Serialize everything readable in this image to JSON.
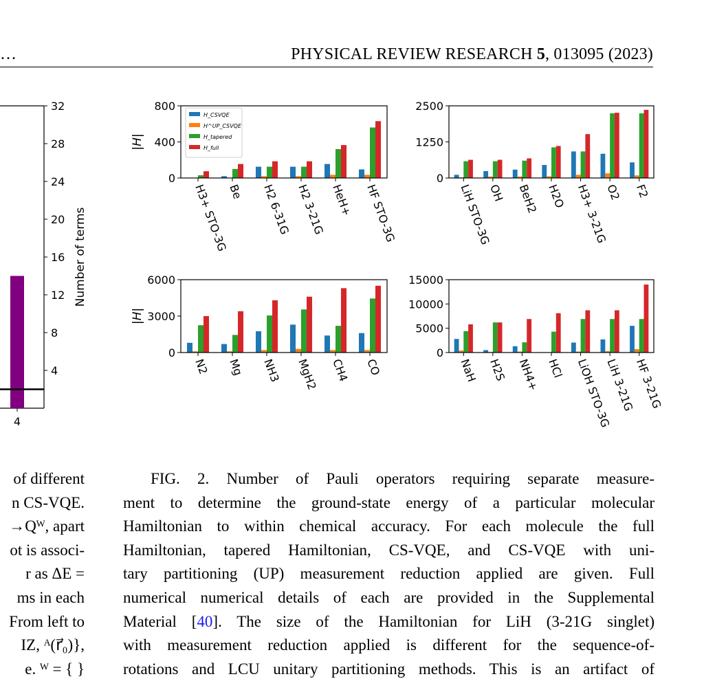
{
  "header": {
    "left_fragment": "…",
    "journal": "PHYSICAL REVIEW RESEARCH",
    "volume": "5",
    "article": ", 013095 (2023)"
  },
  "left_panel": {
    "ylabel": "Number of terms",
    "yticks": [
      "32",
      "28",
      "24",
      "20",
      "16",
      "12",
      "8",
      "4"
    ],
    "xtick": "4",
    "bar_value": 14,
    "hline_value": 2,
    "bar_color": "#800080"
  },
  "colors": {
    "csvqe": "#1f77b4",
    "csvqe_up": "#ff7f0e",
    "tapered": "#2ca02c",
    "full": "#d62728"
  },
  "legend": [
    "H_CSVQE",
    "H^UP_CSVQE",
    "H_tapered",
    "H_full"
  ],
  "chart_data": [
    {
      "type": "bar",
      "ylabel": "|H|",
      "ylim": [
        0,
        800
      ],
      "yticks": [
        "0",
        "400",
        "800"
      ],
      "categories": [
        "H3+ STO-3G",
        "Be",
        "H2 6-31G",
        "H2 3-21G",
        "HeH+",
        "HF STO-3G"
      ],
      "series": [
        {
          "name": "H_CSVQE",
          "values": [
            0,
            20,
            125,
            125,
            155,
            95
          ]
        },
        {
          "name": "H^UP_CSVQE",
          "values": [
            0,
            0,
            20,
            20,
            35,
            35
          ]
        },
        {
          "name": "H_tapered",
          "values": [
            30,
            100,
            125,
            125,
            320,
            560
          ]
        },
        {
          "name": "H_full",
          "values": [
            75,
            155,
            185,
            185,
            365,
            630
          ]
        }
      ]
    },
    {
      "type": "bar",
      "ylabel": "",
      "ylim": [
        0,
        2500
      ],
      "yticks": [
        "0",
        "1250",
        "2500"
      ],
      "categories": [
        "LiH STO-3G",
        "OH",
        "BeH2",
        "H2O",
        "H3+ 3-21G",
        "O2",
        "F2"
      ],
      "series": [
        {
          "name": "H_CSVQE",
          "values": [
            110,
            240,
            290,
            450,
            920,
            840,
            540
          ]
        },
        {
          "name": "H^UP_CSVQE",
          "values": [
            20,
            50,
            50,
            60,
            110,
            160,
            90
          ]
        },
        {
          "name": "H_tapered",
          "values": [
            580,
            580,
            600,
            1060,
            920,
            2240,
            2240
          ]
        },
        {
          "name": "H_full",
          "values": [
            630,
            630,
            680,
            1110,
            1520,
            2260,
            2360
          ]
        }
      ]
    },
    {
      "type": "bar",
      "ylabel": "|H|",
      "ylim": [
        0,
        6000
      ],
      "yticks": [
        "0",
        "3000",
        "6000"
      ],
      "categories": [
        "N2",
        "Mg",
        "NH3",
        "MgH2",
        "CH4",
        "CO"
      ],
      "series": [
        {
          "name": "H_CSVQE",
          "values": [
            800,
            700,
            1750,
            2300,
            1400,
            1600
          ]
        },
        {
          "name": "H^UP_CSVQE",
          "values": [
            100,
            100,
            200,
            300,
            200,
            200
          ]
        },
        {
          "name": "H_tapered",
          "values": [
            2250,
            1450,
            3050,
            3550,
            2200,
            4450
          ]
        },
        {
          "name": "H_full",
          "values": [
            3000,
            3400,
            4300,
            4600,
            5300,
            5500
          ]
        }
      ]
    },
    {
      "type": "bar",
      "ylabel": "",
      "ylim": [
        0,
        15000
      ],
      "yticks": [
        "0",
        "5000",
        "10000",
        "15000"
      ],
      "categories": [
        "NaH",
        "H2S",
        "NH4+",
        "HCl",
        "LiOH STO-3G",
        "LiH 3-21G",
        "HF 3-21G"
      ],
      "series": [
        {
          "name": "H_CSVQE",
          "values": [
            2800,
            500,
            1300,
            0,
            2050,
            2700,
            5500
          ]
        },
        {
          "name": "H^UP_CSVQE",
          "values": [
            400,
            100,
            200,
            0,
            200,
            300,
            700
          ]
        },
        {
          "name": "H_tapered",
          "values": [
            4400,
            6200,
            2100,
            4300,
            6900,
            6900,
            6900
          ]
        },
        {
          "name": "H_full",
          "values": [
            5800,
            6200,
            6900,
            8100,
            8700,
            8700,
            14000
          ]
        }
      ]
    }
  ],
  "left_text": [
    "of different",
    "n CS-VQE.",
    "→Qᵂ, apart",
    "ot is associ-",
    "r as ΔE =",
    "ms in each",
    "From left to",
    "IZ, ᴬ(r⃗₀)},",
    "e. ᵂ = { }"
  ],
  "caption": {
    "lines": [
      "FIG. 2. Number of Pauli operators requiring separate measure-",
      "ment to determine the ground-state energy of a particular molecular",
      "Hamiltonian to within chemical accuracy. For each molecule the full",
      "Hamiltonian, tapered Hamiltonian, CS-VQE, and CS-VQE with uni-",
      "tary partitioning (UP) measurement reduction applied are given. Full",
      "numerical numerical details of each are provided in the Supplemental",
      "with measurement reduction applied is different for the sequence-of-",
      "rotations and LCU unitary partitioning methods. This is an artifact of"
    ],
    "line7_pre": "Material [",
    "cite": "40",
    "line7_post": "]. The size of the Hamiltonian for LiH (3-21G singlet)"
  }
}
